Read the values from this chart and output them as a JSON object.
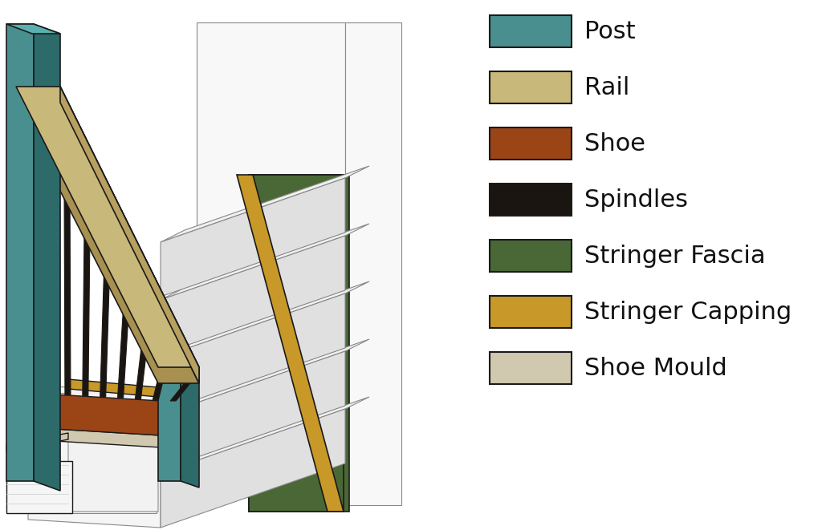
{
  "background_color": "#ffffff",
  "legend_items": [
    {
      "label": "Post",
      "color": "#4a8f8f"
    },
    {
      "label": "Rail",
      "color": "#c8b87a"
    },
    {
      "label": "Shoe",
      "color": "#9b4415"
    },
    {
      "label": "Spindles",
      "color": "#1a1510"
    },
    {
      "label": "Stringer Fascia",
      "color": "#4a6835"
    },
    {
      "label": "Stringer Capping",
      "color": "#c89828"
    },
    {
      "label": "Shoe Mould",
      "color": "#d0c9b0"
    }
  ],
  "colors": {
    "post_front": "#4a8f8f",
    "post_side": "#2d6a6a",
    "post_top": "#5aafaf",
    "rail_top": "#c8b87a",
    "rail_front": "#a89050",
    "rail_side": "#b8a060",
    "shoe": "#9b4415",
    "spindle": "#1a1510",
    "stringer_fascia": "#4a6835",
    "stringer_fascia_dark": "#3a5025",
    "stringer_capping": "#c89828",
    "shoe_mould": "#d0c9b0",
    "step_tread": "#f0f0f0",
    "step_riser": "#e0e0e0",
    "step_side": "#d8d8d8",
    "wall_back": "#f8f8f8",
    "wall_side": "#eeeeee",
    "base_white": "#f5f5f5",
    "outline": "#1a1a1a",
    "outline_light": "#888888"
  }
}
